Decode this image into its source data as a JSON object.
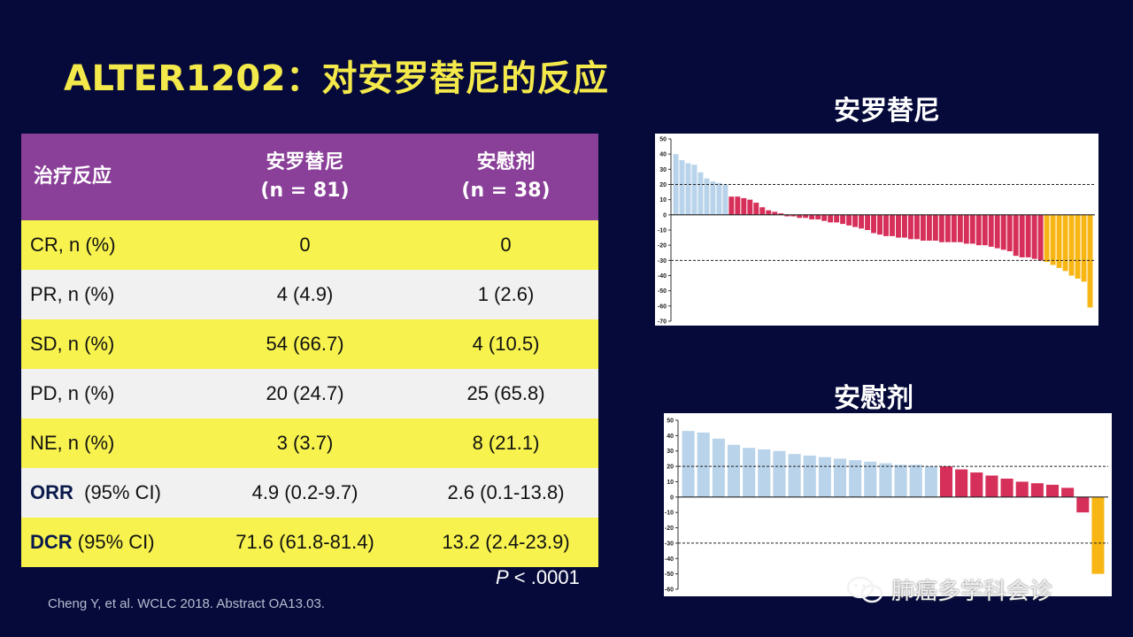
{
  "title": "ALTER1202：对安罗替尼的反应",
  "table": {
    "headers": {
      "col1": "治疗反应",
      "col2_line1": "安罗替尼",
      "col2_line2": "(n = 81)",
      "col3_line1": "安慰剂",
      "col3_line2": "(n = 38)"
    },
    "rows": [
      {
        "label": "CR, n (%)",
        "a": "0",
        "b": "0"
      },
      {
        "label": "PR, n (%)",
        "a": "4 (4.9)",
        "b": "1 (2.6)"
      },
      {
        "label": "SD, n (%)",
        "a": "54 (66.7)",
        "b": "4 (10.5)"
      },
      {
        "label": "PD, n (%)",
        "a": "20 (24.7)",
        "b": "25 (65.8)"
      },
      {
        "label": "NE, n (%)",
        "a": "3 (3.7)",
        "b": "8 (21.1)"
      }
    ],
    "orr": {
      "label_bold": "ORR",
      "label_rest": "  (95% CI)",
      "a": "4.9 (0.2-9.7)",
      "b": "2.6 (0.1-13.8)"
    },
    "dcr": {
      "label_bold": "DCR",
      "label_rest": " (95% CI)",
      "a": "71.6 (61.8-81.4)",
      "b": "13.2 (2.4-23.9)"
    }
  },
  "pvalue": {
    "p": "P",
    "rest": " < .0001"
  },
  "citation": "Cheng Y, et al. WCLC 2018. Abstract OA13.03.",
  "watermark": "肺癌多学科会诊",
  "colors": {
    "pr": "#b8d3ea",
    "sd": "#d6305a",
    "pd": "#f7b614",
    "title": "#f4e94a",
    "header": "#8a3f98"
  },
  "chart_data": [
    {
      "type": "bar",
      "title": "安罗替尼",
      "ylim": [
        -70,
        50
      ],
      "yticks": [
        50,
        40,
        30,
        20,
        10,
        0,
        -10,
        -20,
        -30,
        -40,
        -50,
        -60,
        -70
      ],
      "reference_lines": [
        20,
        -30
      ],
      "values": [
        40,
        36,
        34,
        33,
        28,
        24,
        22,
        21,
        20,
        12,
        12,
        11,
        10,
        8,
        5,
        3,
        2,
        1,
        -1,
        -1,
        -2,
        -2,
        -3,
        -3,
        -4,
        -5,
        -5,
        -6,
        -7,
        -8,
        -9,
        -10,
        -12,
        -13,
        -14,
        -14,
        -15,
        -15,
        -16,
        -16,
        -17,
        -17,
        -17,
        -18,
        -18,
        -18,
        -18,
        -19,
        -19,
        -20,
        -20,
        -21,
        -22,
        -23,
        -24,
        -27,
        -28,
        -28,
        -29,
        -30,
        -31,
        -33,
        -35,
        -37,
        -40,
        -42,
        -44,
        -61
      ],
      "colors": [
        "#b8d3ea",
        "#b8d3ea",
        "#b8d3ea",
        "#b8d3ea",
        "#b8d3ea",
        "#b8d3ea",
        "#b8d3ea",
        "#b8d3ea",
        "#b8d3ea",
        "#d6305a",
        "#d6305a",
        "#d6305a",
        "#d6305a",
        "#d6305a",
        "#d6305a",
        "#d6305a",
        "#d6305a",
        "#d6305a",
        "#d6305a",
        "#d6305a",
        "#d6305a",
        "#d6305a",
        "#d6305a",
        "#d6305a",
        "#d6305a",
        "#d6305a",
        "#d6305a",
        "#d6305a",
        "#d6305a",
        "#d6305a",
        "#d6305a",
        "#d6305a",
        "#d6305a",
        "#d6305a",
        "#d6305a",
        "#d6305a",
        "#d6305a",
        "#d6305a",
        "#d6305a",
        "#d6305a",
        "#d6305a",
        "#d6305a",
        "#d6305a",
        "#d6305a",
        "#d6305a",
        "#d6305a",
        "#d6305a",
        "#d6305a",
        "#d6305a",
        "#d6305a",
        "#d6305a",
        "#d6305a",
        "#d6305a",
        "#d6305a",
        "#d6305a",
        "#d6305a",
        "#d6305a",
        "#d6305a",
        "#d6305a",
        "#d6305a",
        "#f7b614",
        "#f7b614",
        "#f7b614",
        "#f7b614",
        "#f7b614",
        "#f7b614",
        "#f7b614",
        "#f7b614"
      ]
    },
    {
      "type": "bar",
      "title": "安慰剂",
      "ylim": [
        -60,
        50
      ],
      "yticks": [
        50,
        40,
        30,
        20,
        10,
        0,
        -10,
        -20,
        -30,
        -40,
        -50,
        -60
      ],
      "reference_lines": [
        20,
        -30
      ],
      "values": [
        43,
        42,
        38,
        34,
        32,
        31,
        30,
        28,
        27,
        26,
        25,
        24,
        23,
        22,
        21,
        21,
        20,
        20,
        18,
        16,
        14,
        12,
        10,
        9,
        8,
        6,
        -10,
        -50
      ],
      "colors": [
        "#b8d3ea",
        "#b8d3ea",
        "#b8d3ea",
        "#b8d3ea",
        "#b8d3ea",
        "#b8d3ea",
        "#b8d3ea",
        "#b8d3ea",
        "#b8d3ea",
        "#b8d3ea",
        "#b8d3ea",
        "#b8d3ea",
        "#b8d3ea",
        "#b8d3ea",
        "#b8d3ea",
        "#b8d3ea",
        "#b8d3ea",
        "#d6305a",
        "#d6305a",
        "#d6305a",
        "#d6305a",
        "#d6305a",
        "#d6305a",
        "#d6305a",
        "#d6305a",
        "#d6305a",
        "#d6305a",
        "#f7b614"
      ]
    }
  ]
}
